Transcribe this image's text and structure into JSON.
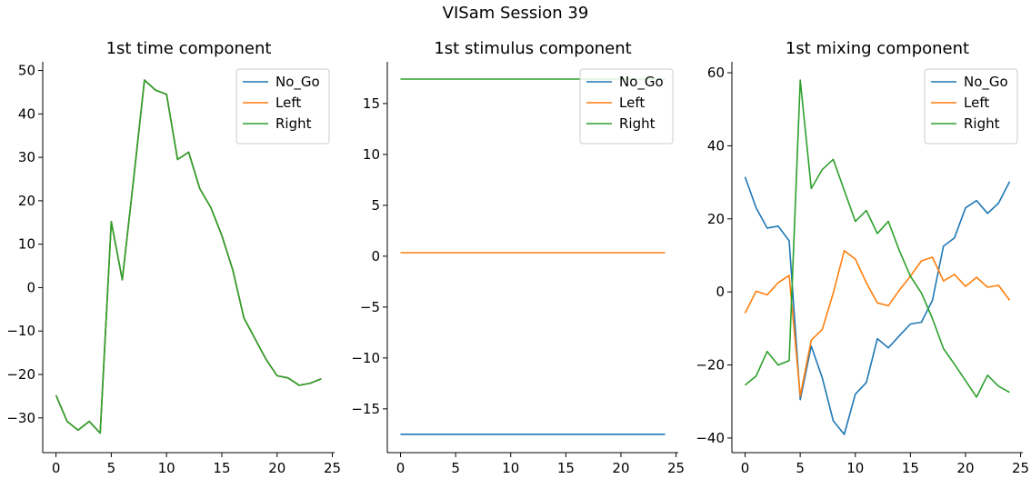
{
  "suptitle": "VISam Session 39",
  "colors": {
    "No_Go": "#1f77b4",
    "Left": "#ff7f0e",
    "Right": "#2ca02c"
  },
  "chart_data": [
    {
      "type": "line",
      "title": "1st time component",
      "xlabel": "",
      "ylabel": "",
      "xlim": [
        -1.2,
        25.2
      ],
      "ylim": [
        -38,
        52
      ],
      "xticks": [
        0,
        5,
        10,
        15,
        20,
        25
      ],
      "yticks": [
        -30,
        -20,
        -10,
        0,
        10,
        20,
        30,
        40,
        50
      ],
      "legend_position": "top-right",
      "series": [
        {
          "name": "No_Go",
          "color": "#1f77b4",
          "x": [
            0,
            1,
            2,
            3,
            4,
            5,
            6,
            7,
            8,
            9,
            10,
            11,
            12,
            13,
            14,
            15,
            16,
            17,
            18,
            19,
            20,
            21,
            22,
            23,
            24
          ],
          "y": [
            -24.8,
            -30.8,
            -32.8,
            -30.8,
            -33.5,
            15.2,
            1.8,
            24.5,
            47.8,
            45.5,
            44.5,
            29.5,
            31.2,
            22.8,
            18.5,
            12,
            4,
            -7,
            -11.8,
            -16.5,
            -20.3,
            -20.8,
            -22.5,
            -22,
            -21
          ]
        },
        {
          "name": "Left",
          "color": "#ff7f0e",
          "x": [
            0,
            1,
            2,
            3,
            4,
            5,
            6,
            7,
            8,
            9,
            10,
            11,
            12,
            13,
            14,
            15,
            16,
            17,
            18,
            19,
            20,
            21,
            22,
            23,
            24
          ],
          "y": [
            -24.8,
            -30.8,
            -32.8,
            -30.8,
            -33.5,
            15.2,
            1.8,
            24.5,
            47.8,
            45.5,
            44.5,
            29.5,
            31.2,
            22.8,
            18.5,
            12,
            4,
            -7,
            -11.8,
            -16.5,
            -20.3,
            -20.8,
            -22.5,
            -22,
            -21
          ]
        },
        {
          "name": "Right",
          "color": "#2ca02c",
          "x": [
            0,
            1,
            2,
            3,
            4,
            5,
            6,
            7,
            8,
            9,
            10,
            11,
            12,
            13,
            14,
            15,
            16,
            17,
            18,
            19,
            20,
            21,
            22,
            23,
            24
          ],
          "y": [
            -24.8,
            -30.8,
            -32.8,
            -30.8,
            -33.5,
            15.2,
            1.8,
            24.5,
            47.8,
            45.5,
            44.5,
            29.5,
            31.2,
            22.8,
            18.5,
            12,
            4,
            -7,
            -11.8,
            -16.5,
            -20.3,
            -20.8,
            -22.5,
            -22,
            -21
          ]
        }
      ]
    },
    {
      "type": "line",
      "title": "1st stimulus component",
      "xlabel": "",
      "ylabel": "",
      "xlim": [
        -1.2,
        25.2
      ],
      "ylim": [
        -19.3,
        19.1
      ],
      "xticks": [
        0,
        5,
        10,
        15,
        20,
        25
      ],
      "yticks": [
        -15,
        -10,
        -5,
        0,
        5,
        10,
        15
      ],
      "legend_position": "top-right",
      "series": [
        {
          "name": "No_Go",
          "color": "#1f77b4",
          "x": [
            0,
            24
          ],
          "y": [
            -17.5,
            -17.5
          ]
        },
        {
          "name": "Left",
          "color": "#ff7f0e",
          "x": [
            0,
            24
          ],
          "y": [
            0.35,
            0.35
          ]
        },
        {
          "name": "Right",
          "color": "#2ca02c",
          "x": [
            0,
            24
          ],
          "y": [
            17.4,
            17.4
          ]
        }
      ]
    },
    {
      "type": "line",
      "title": "1st mixing component",
      "xlabel": "",
      "ylabel": "",
      "xlim": [
        -1.2,
        25.2
      ],
      "ylim": [
        -44,
        63
      ],
      "xticks": [
        0,
        5,
        10,
        15,
        20,
        25
      ],
      "yticks": [
        -40,
        -20,
        0,
        20,
        40,
        60
      ],
      "legend_position": "top-right",
      "series": [
        {
          "name": "No_Go",
          "color": "#1f77b4",
          "x": [
            0,
            1,
            2,
            3,
            4,
            5,
            6,
            7,
            8,
            9,
            10,
            11,
            12,
            13,
            14,
            15,
            16,
            17,
            18,
            19,
            20,
            21,
            22,
            23,
            24
          ],
          "y": [
            31.5,
            23,
            17.5,
            18,
            14,
            -29.5,
            -14.8,
            -23.5,
            -35.3,
            -39,
            -28,
            -24.8,
            -12.8,
            -15.3,
            -12,
            -8.8,
            -8.3,
            -2.3,
            12.5,
            14.8,
            23,
            25,
            21.5,
            24.3,
            30.2
          ]
        },
        {
          "name": "Left",
          "color": "#ff7f0e",
          "x": [
            0,
            1,
            2,
            3,
            4,
            5,
            6,
            7,
            8,
            9,
            10,
            11,
            12,
            13,
            14,
            15,
            16,
            17,
            18,
            19,
            20,
            21,
            22,
            23,
            24
          ],
          "y": [
            -5.8,
            0.2,
            -0.8,
            2.5,
            4.5,
            -28.5,
            -13.2,
            -10.3,
            -0.3,
            11.3,
            9,
            2.5,
            -3,
            -3.8,
            0.5,
            4.3,
            8.5,
            9.5,
            3,
            4.8,
            1.5,
            4,
            1.3,
            1.8,
            -2.3
          ]
        },
        {
          "name": "Right",
          "color": "#2ca02c",
          "x": [
            0,
            1,
            2,
            3,
            4,
            5,
            6,
            7,
            8,
            9,
            10,
            11,
            12,
            13,
            14,
            15,
            16,
            17,
            18,
            19,
            20,
            21,
            22,
            23,
            24
          ],
          "y": [
            -25.5,
            -23,
            -16.3,
            -20,
            -18.8,
            58,
            28.3,
            33.5,
            36.3,
            27.8,
            19.3,
            22.3,
            16,
            19.3,
            11.3,
            4.3,
            -0.3,
            -7.3,
            -15.5,
            -19.8,
            -24.3,
            -28.8,
            -22.8,
            -25.8,
            -27.5
          ]
        }
      ]
    }
  ]
}
